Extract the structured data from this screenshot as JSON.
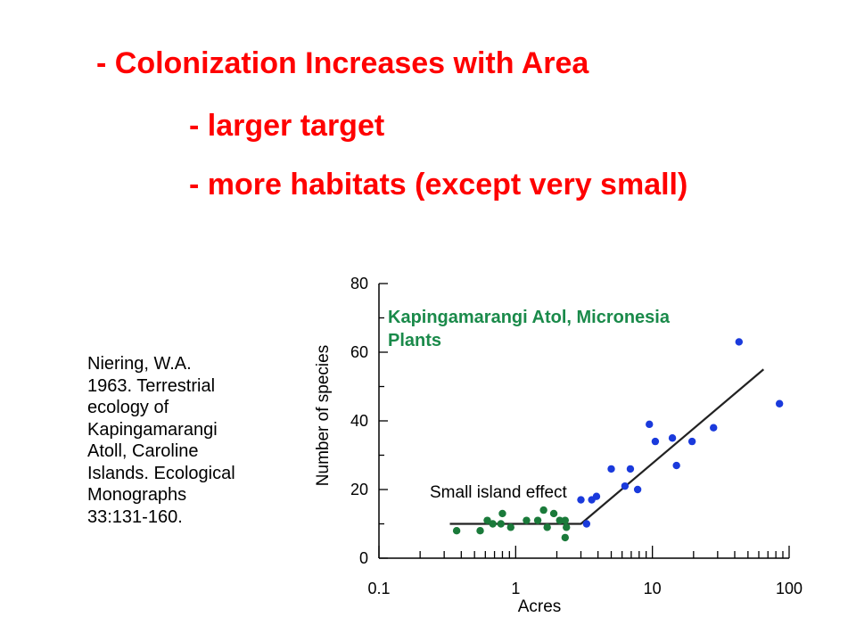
{
  "slide": {
    "bullets": [
      "- Colonization Increases with Area",
      "- larger target",
      "- more habitats (except very small)"
    ],
    "citation_lines": [
      "Niering, W.A.",
      "1963. Terrestrial",
      "ecology of",
      "Kapingamarangi",
      "Atoll, Caroline",
      "Islands. Ecological",
      "Monographs",
      "33:131-160."
    ]
  },
  "colors": {
    "bullet_text": "#ff0000",
    "title_green": "#1a8a4a",
    "small_island_points": "#1a7a3a",
    "large_island_points": "#1a3adc",
    "axis": "#000000"
  },
  "chart_data": {
    "type": "scatter",
    "title_lines": [
      "Kapingamarangi Atol, Micronesia",
      "Plants"
    ],
    "xlabel": "Acres",
    "ylabel": "Number of species",
    "x_scale": "log",
    "xlim": [
      0.1,
      100
    ],
    "ylim": [
      0,
      80
    ],
    "x_ticks": [
      0.1,
      1,
      10,
      100
    ],
    "x_tick_labels": [
      "0.1",
      "1",
      "10",
      "100"
    ],
    "y_ticks": [
      0,
      20,
      40,
      60,
      80
    ],
    "y_tick_labels": [
      "0",
      "20",
      "40",
      "60",
      "80"
    ],
    "annotation": "Small island effect",
    "series": [
      {
        "points": [
          [
            0.37,
            8
          ],
          [
            0.55,
            8
          ],
          [
            0.62,
            11
          ],
          [
            0.68,
            10
          ],
          [
            0.78,
            10
          ],
          [
            0.8,
            13
          ],
          [
            0.92,
            9
          ],
          [
            1.2,
            11
          ],
          [
            1.45,
            11
          ],
          [
            1.6,
            14
          ],
          [
            1.7,
            9
          ],
          [
            1.9,
            13
          ],
          [
            2.1,
            11
          ],
          [
            2.3,
            11
          ],
          [
            2.35,
            9
          ],
          [
            2.3,
            6
          ]
        ]
      },
      {
        "points": [
          [
            3.0,
            17
          ],
          [
            3.3,
            10
          ],
          [
            3.6,
            17
          ],
          [
            3.9,
            18
          ],
          [
            5.0,
            26
          ],
          [
            6.3,
            21
          ],
          [
            6.9,
            26
          ],
          [
            7.8,
            20
          ],
          [
            9.5,
            39
          ],
          [
            10.5,
            34
          ],
          [
            14,
            35
          ],
          [
            15,
            27
          ],
          [
            19.5,
            34
          ],
          [
            28,
            38
          ],
          [
            43,
            63
          ],
          [
            85,
            45
          ]
        ]
      }
    ],
    "fit_line": [
      [
        0.33,
        10
      ],
      [
        3.0,
        10
      ],
      [
        65,
        55
      ]
    ]
  }
}
